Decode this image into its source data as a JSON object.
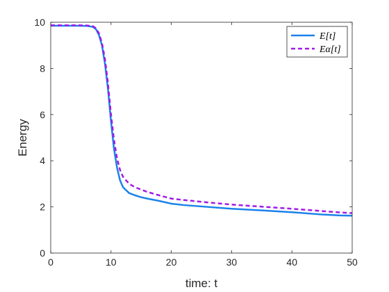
{
  "chart_data": {
    "type": "line",
    "xlabel": "time: t",
    "ylabel": "Energy",
    "xlim": [
      0,
      50
    ],
    "ylim": [
      0,
      10
    ],
    "xticks": [
      0,
      10,
      20,
      30,
      40,
      50
    ],
    "yticks": [
      0,
      2,
      4,
      6,
      8,
      10
    ],
    "grid": false,
    "legend_position": "top-right",
    "series": [
      {
        "name": "E[t]",
        "color": "#1a82ea",
        "style": "solid",
        "x": [
          0,
          2,
          4,
          6,
          7,
          7.5,
          8,
          8.5,
          9,
          9.5,
          10,
          10.5,
          11,
          11.5,
          12,
          13,
          14,
          15,
          16,
          18,
          20,
          22,
          25,
          30,
          35,
          40,
          45,
          48,
          50
        ],
        "y": [
          9.85,
          9.85,
          9.85,
          9.84,
          9.8,
          9.7,
          9.45,
          9.0,
          8.2,
          7.1,
          5.7,
          4.5,
          3.7,
          3.15,
          2.85,
          2.6,
          2.5,
          2.42,
          2.36,
          2.26,
          2.14,
          2.08,
          2.02,
          1.92,
          1.85,
          1.77,
          1.67,
          1.63,
          1.62
        ]
      },
      {
        "name": "Eα[t]",
        "color": "#a11ae8",
        "style": "dashed",
        "x": [
          0,
          2,
          4,
          6,
          7,
          7.5,
          8,
          8.5,
          9,
          9.5,
          10,
          10.5,
          11,
          11.5,
          12,
          13,
          14,
          15,
          16,
          18,
          20,
          22,
          25,
          30,
          35,
          40,
          45,
          48,
          50
        ],
        "y": [
          9.87,
          9.87,
          9.87,
          9.86,
          9.83,
          9.74,
          9.52,
          9.1,
          8.4,
          7.35,
          6.0,
          4.9,
          4.1,
          3.6,
          3.3,
          3.0,
          2.85,
          2.75,
          2.65,
          2.5,
          2.36,
          2.3,
          2.22,
          2.1,
          2.01,
          1.92,
          1.82,
          1.76,
          1.73
        ]
      }
    ]
  }
}
